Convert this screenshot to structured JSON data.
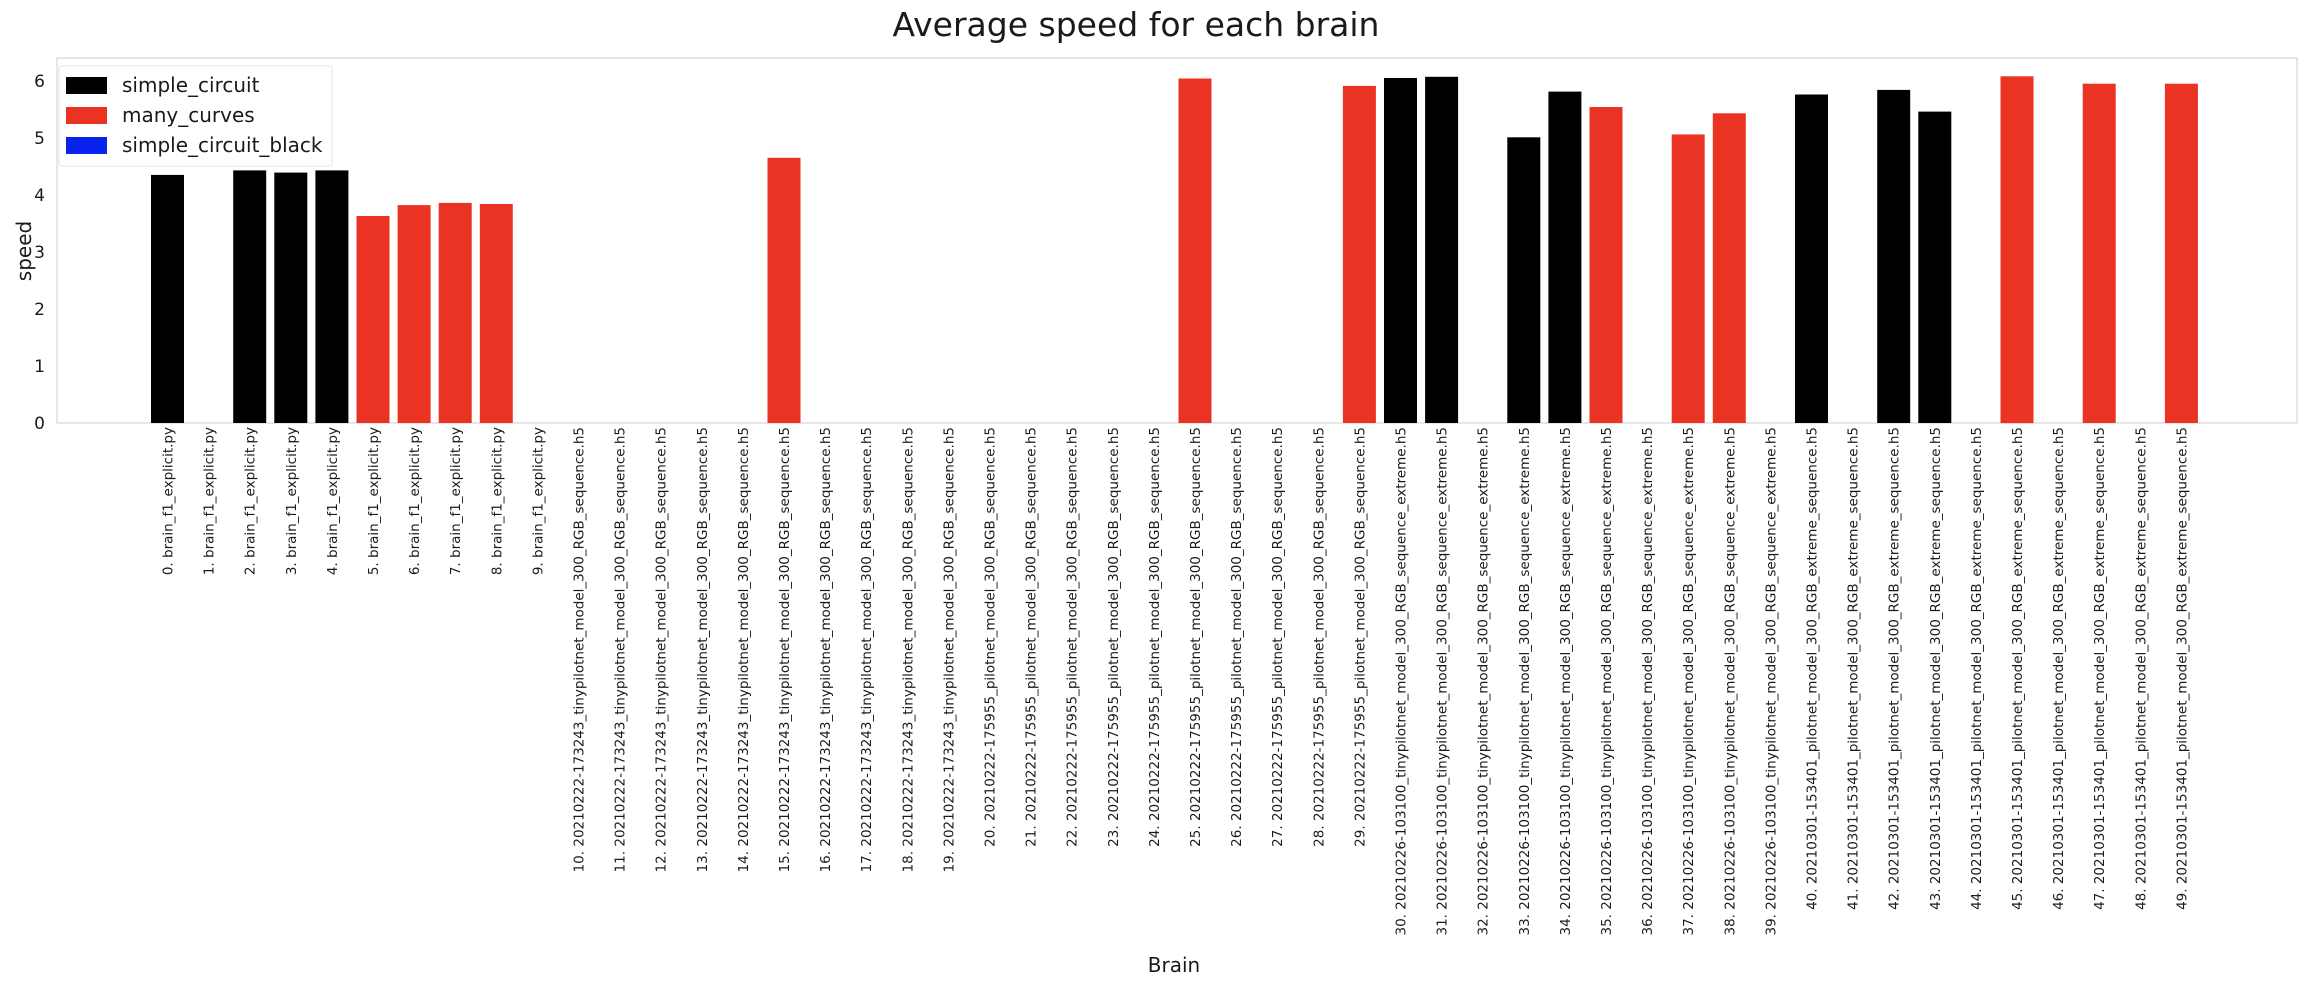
{
  "chart_data": {
    "type": "bar",
    "title": "Average speed for each brain",
    "xlabel": "Brain",
    "ylabel": "speed",
    "ylim": [
      0,
      6.4
    ],
    "yticks": [
      0,
      1,
      2,
      3,
      4,
      5,
      6
    ],
    "grid": false,
    "legend_position": "top-left",
    "legend": [
      {
        "name": "simple_circuit",
        "color": "#000000"
      },
      {
        "name": "many_curves",
        "color": "#ea3323"
      },
      {
        "name": "simple_circuit_black",
        "color": "#0a22ee"
      }
    ],
    "categories": [
      "0. brain_f1_explicit.py",
      "1. brain_f1_explicit.py",
      "2. brain_f1_explicit.py",
      "3. brain_f1_explicit.py",
      "4. brain_f1_explicit.py",
      "5. brain_f1_explicit.py",
      "6. brain_f1_explicit.py",
      "7. brain_f1_explicit.py",
      "8. brain_f1_explicit.py",
      "9. brain_f1_explicit.py",
      "10. 20210222-173243_tinypilotnet_model_300_RGB_sequence.h5",
      "11. 20210222-173243_tinypilotnet_model_300_RGB_sequence.h5",
      "12. 20210222-173243_tinypilotnet_model_300_RGB_sequence.h5",
      "13. 20210222-173243_tinypilotnet_model_300_RGB_sequence.h5",
      "14. 20210222-173243_tinypilotnet_model_300_RGB_sequence.h5",
      "15. 20210222-173243_tinypilotnet_model_300_RGB_sequence.h5",
      "16. 20210222-173243_tinypilotnet_model_300_RGB_sequence.h5",
      "17. 20210222-173243_tinypilotnet_model_300_RGB_sequence.h5",
      "18. 20210222-173243_tinypilotnet_model_300_RGB_sequence.h5",
      "19. 20210222-173243_tinypilotnet_model_300_RGB_sequence.h5",
      "20. 20210222-175955_pilotnet_model_300_RGB_sequence.h5",
      "21. 20210222-175955_pilotnet_model_300_RGB_sequence.h5",
      "22. 20210222-175955_pilotnet_model_300_RGB_sequence.h5",
      "23. 20210222-175955_pilotnet_model_300_RGB_sequence.h5",
      "24. 20210222-175955_pilotnet_model_300_RGB_sequence.h5",
      "25. 20210222-175955_pilotnet_model_300_RGB_sequence.h5",
      "26. 20210222-175955_pilotnet_model_300_RGB_sequence.h5",
      "27. 20210222-175955_pilotnet_model_300_RGB_sequence.h5",
      "28. 20210222-175955_pilotnet_model_300_RGB_sequence.h5",
      "29. 20210222-175955_pilotnet_model_300_RGB_sequence.h5",
      "30. 20210226-103100_tinypilotnet_model_300_RGB_sequence_extreme.h5",
      "31. 20210226-103100_tinypilotnet_model_300_RGB_sequence_extreme.h5",
      "32. 20210226-103100_tinypilotnet_model_300_RGB_sequence_extreme.h5",
      "33. 20210226-103100_tinypilotnet_model_300_RGB_sequence_extreme.h5",
      "34. 20210226-103100_tinypilotnet_model_300_RGB_sequence_extreme.h5",
      "35. 20210226-103100_tinypilotnet_model_300_RGB_sequence_extreme.h5",
      "36. 20210226-103100_tinypilotnet_model_300_RGB_sequence_extreme.h5",
      "37. 20210226-103100_tinypilotnet_model_300_RGB_sequence_extreme.h5",
      "38. 20210226-103100_tinypilotnet_model_300_RGB_sequence_extreme.h5",
      "39. 20210226-103100_tinypilotnet_model_300_RGB_sequence_extreme.h5",
      "40. 20210301-153401_pilotnet_model_300_RGB_extreme_sequence.h5",
      "41. 20210301-153401_pilotnet_model_300_RGB_extreme_sequence.h5",
      "42. 20210301-153401_pilotnet_model_300_RGB_extreme_sequence.h5",
      "43. 20210301-153401_pilotnet_model_300_RGB_extreme_sequence.h5",
      "44. 20210301-153401_pilotnet_model_300_RGB_extreme_sequence.h5",
      "45. 20210301-153401_pilotnet_model_300_RGB_extreme_sequence.h5",
      "46. 20210301-153401_pilotnet_model_300_RGB_extreme_sequence.h5",
      "47. 20210301-153401_pilotnet_model_300_RGB_extreme_sequence.h5",
      "48. 20210301-153401_pilotnet_model_300_RGB_extreme_sequence.h5",
      "49. 20210301-153401_pilotnet_model_300_RGB_extreme_sequence.h5"
    ],
    "values": [
      4.35,
      null,
      4.43,
      4.39,
      4.43,
      3.63,
      3.82,
      3.86,
      3.84,
      null,
      null,
      null,
      null,
      null,
      null,
      4.65,
      null,
      null,
      null,
      null,
      null,
      null,
      null,
      null,
      null,
      6.04,
      null,
      null,
      null,
      5.91,
      6.05,
      6.07,
      null,
      5.01,
      5.81,
      5.54,
      null,
      5.06,
      5.43,
      null,
      5.76,
      null,
      5.84,
      5.46,
      null,
      6.08,
      null,
      5.95,
      null,
      5.95
    ],
    "bar_series": [
      "simple_circuit",
      null,
      "simple_circuit",
      "simple_circuit",
      "simple_circuit",
      "many_curves",
      "many_curves",
      "many_curves",
      "many_curves",
      null,
      null,
      null,
      null,
      null,
      null,
      "many_curves",
      null,
      null,
      null,
      null,
      null,
      null,
      null,
      null,
      null,
      "many_curves",
      null,
      null,
      null,
      "many_curves",
      "simple_circuit",
      "simple_circuit",
      null,
      "simple_circuit",
      "simple_circuit",
      "many_curves",
      null,
      "many_curves",
      "many_curves",
      null,
      "simple_circuit",
      null,
      "simple_circuit",
      "simple_circuit",
      null,
      "many_curves",
      null,
      "many_curves",
      null,
      "many_curves"
    ]
  }
}
